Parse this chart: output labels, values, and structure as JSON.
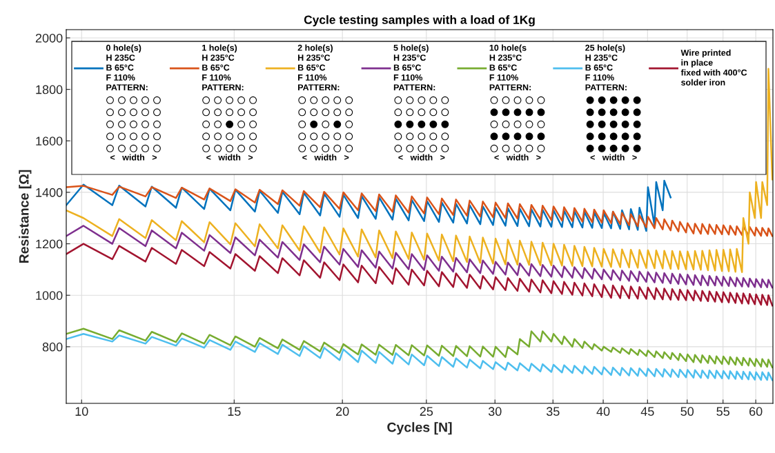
{
  "chart_data": {
    "type": "line",
    "title": "Cycle testing samples with a load of 1Kg",
    "xlabel": "Cycles [N]",
    "ylabel": "Resistance [Ω]",
    "log": "x",
    "xlim": [
      9.6,
      62.8
    ],
    "ylim": [
      580,
      2032
    ],
    "xticks": [
      10,
      15,
      20,
      25,
      30,
      35,
      40,
      45,
      50,
      55,
      60
    ],
    "yticks": [
      800,
      1000,
      1200,
      1400,
      1600,
      1800,
      2000
    ],
    "grid": true,
    "legend": "top",
    "line_style": "solid",
    "marker": "none",
    "annotations": [
      "<   width   >"
    ],
    "x": [
      9.6,
      10.05,
      10.85,
      11.05,
      11.85,
      12.05,
      12.85,
      13.05,
      13.85,
      14.05,
      14.85,
      15.05,
      15.85,
      16.05,
      16.85,
      17.05,
      17.85,
      18.05,
      18.85,
      19.05,
      19.85,
      20.05,
      20.85,
      21.05,
      21.85,
      22.05,
      22.85,
      23.05,
      23.85,
      24.05,
      24.85,
      25.05,
      25.85,
      26.05,
      26.85,
      27.05,
      27.85,
      28.05,
      28.85,
      29.05,
      29.85,
      30.05,
      30.85,
      31.05,
      31.85,
      32.05,
      32.85,
      33.05,
      33.85,
      34.05,
      34.85,
      35.05,
      35.85,
      36.05,
      36.85,
      37.05,
      37.85,
      38.05,
      38.85,
      39.05,
      39.85,
      40.05,
      40.85,
      41.05,
      41.85,
      42.05,
      42.85,
      43.05,
      43.85,
      44.05,
      44.85,
      45.05,
      45.85,
      46.05,
      46.85,
      47.05,
      47.85,
      48.05,
      48.85,
      49.05,
      49.85,
      50.05,
      50.85,
      51.05,
      51.85,
      52.05,
      52.85,
      53.05,
      53.85,
      54.05,
      54.85,
      55.05,
      55.85,
      56.05,
      56.85,
      57.05,
      57.85,
      58.05,
      58.85,
      59.05,
      59.85,
      60.05,
      60.85,
      61.05,
      61.85,
      62.05,
      62.7
    ],
    "series": [
      {
        "name": "0 hole(s)\nH 235C\nB 65°C\nF 110%\nPATTERN:",
        "color": "#0072bd",
        "values": [
          1350,
          1430,
          1350,
          1426,
          1345,
          1422,
          1340,
          1418,
          1335,
          1414,
          1330,
          1410,
          1325,
          1406,
          1320,
          1402,
          1315,
          1398,
          1310,
          1394,
          1305,
          1390,
          1300,
          1385,
          1297,
          1380,
          1294,
          1375,
          1291,
          1370,
          1288,
          1365,
          1285,
          1360,
          1282,
          1355,
          1279,
          1350,
          1276,
          1345,
          1273,
          1340,
          1270,
          1338,
          1269,
          1336,
          1268,
          1334,
          1267,
          1332,
          1266,
          1330,
          1265,
          1328,
          1264,
          1326,
          1263,
          1324,
          1262,
          1322,
          1261,
          1320,
          1260,
          1325,
          1258,
          1330,
          1256,
          1335,
          1254,
          1340,
          1250,
          1420,
          1270,
          1440,
          1330,
          1445,
          1380,
          null,
          null,
          null,
          null,
          null,
          null,
          null,
          null,
          null,
          null,
          null,
          null,
          null,
          null,
          null,
          null,
          null,
          null,
          null,
          null,
          null,
          null,
          null,
          null,
          null,
          null,
          null,
          null,
          null,
          null
        ]
      },
      {
        "name": "1 hole(s)\nH 235°C\nB 65°C\nF 110%\nPATTERN:",
        "color": "#d95319",
        "values": [
          1420,
          1425,
          1390,
          1422,
          1384,
          1420,
          1378,
          1418,
          1372,
          1415,
          1366,
          1412,
          1360,
          1410,
          1354,
          1408,
          1348,
          1405,
          1342,
          1402,
          1336,
          1400,
          1330,
          1396,
          1327,
          1392,
          1324,
          1388,
          1321,
          1384,
          1318,
          1380,
          1315,
          1376,
          1312,
          1372,
          1309,
          1368,
          1306,
          1364,
          1303,
          1360,
          1300,
          1357,
          1298,
          1354,
          1296,
          1351,
          1294,
          1348,
          1292,
          1345,
          1290,
          1342,
          1288,
          1339,
          1286,
          1336,
          1284,
          1333,
          1282,
          1330,
          1280,
          1325,
          1276,
          1320,
          1272,
          1315,
          1268,
          1310,
          1264,
          1305,
          1260,
          1300,
          1256,
          1295,
          1252,
          1290,
          1248,
          1285,
          1244,
          1280,
          1240,
          1278,
          1239,
          1277,
          1238,
          1275,
          1238,
          1273,
          1237,
          1272,
          1236,
          1270,
          1235,
          1268,
          1234,
          1267,
          1233,
          1265,
          1232,
          1263,
          1231,
          1262,
          1231,
          1260,
          1230
        ]
      },
      {
        "name": "2 hole(s)\nH 235°C\nB 65°C\nF 110%\nPATTERN:",
        "color": "#edb120",
        "values": [
          1330,
          1300,
          1230,
          1296,
          1222,
          1292,
          1214,
          1288,
          1206,
          1284,
          1198,
          1280,
          1190,
          1276,
          1182,
          1272,
          1174,
          1268,
          1166,
          1264,
          1158,
          1260,
          1150,
          1256,
          1147,
          1252,
          1144,
          1248,
          1141,
          1244,
          1138,
          1240,
          1135,
          1236,
          1132,
          1232,
          1129,
          1228,
          1126,
          1224,
          1123,
          1220,
          1120,
          1216,
          1119,
          1212,
          1118,
          1208,
          1117,
          1204,
          1116,
          1200,
          1115,
          1196,
          1114,
          1192,
          1113,
          1188,
          1112,
          1184,
          1111,
          1180,
          1110,
          1179,
          1109,
          1178,
          1108,
          1177,
          1107,
          1176,
          1106,
          1175,
          1105,
          1174,
          1104,
          1173,
          1103,
          1172,
          1102,
          1171,
          1101,
          1170,
          1100,
          1172,
          1099,
          1173,
          1097,
          1175,
          1096,
          1176,
          1094,
          1177,
          1093,
          1178,
          1091,
          1180,
          1090,
          1300,
          1200,
          1400,
          1300,
          1440,
          1300,
          1440,
          1350,
          1880,
          1450
        ]
      },
      {
        "name": "5 hole(s)\nH 235°C\nB 65°C\nF 110%\nPATTERN:",
        "color": "#7e2f8e",
        "values": [
          1230,
          1270,
          1200,
          1261,
          1191,
          1252,
          1182,
          1243,
          1173,
          1234,
          1164,
          1225,
          1155,
          1216,
          1146,
          1207,
          1137,
          1198,
          1128,
          1189,
          1119,
          1180,
          1110,
          1175,
          1107,
          1170,
          1104,
          1165,
          1101,
          1160,
          1098,
          1155,
          1095,
          1150,
          1092,
          1145,
          1089,
          1140,
          1086,
          1135,
          1083,
          1130,
          1080,
          1127,
          1078,
          1124,
          1076,
          1121,
          1074,
          1118,
          1072,
          1115,
          1070,
          1112,
          1068,
          1109,
          1066,
          1106,
          1064,
          1103,
          1062,
          1100,
          1060,
          1098,
          1058,
          1096,
          1056,
          1094,
          1054,
          1092,
          1052,
          1090,
          1050,
          1088,
          1048,
          1086,
          1046,
          1084,
          1044,
          1082,
          1042,
          1080,
          1040,
          1078,
          1039,
          1077,
          1038,
          1075,
          1038,
          1073,
          1037,
          1072,
          1036,
          1070,
          1035,
          1068,
          1034,
          1067,
          1033,
          1065,
          1032,
          1063,
          1031,
          1062,
          1031,
          1060,
          1030
        ]
      },
      {
        "name": "10 hole(s\nH 235°C\nB 65°C\nF 110%\nPATTERN:",
        "color": "#77ac30",
        "values": [
          850,
          870,
          830,
          864,
          824,
          858,
          818,
          852,
          812,
          846,
          806,
          840,
          800,
          834,
          794,
          828,
          788,
          822,
          782,
          816,
          776,
          810,
          770,
          809,
          769,
          808,
          768,
          807,
          767,
          806,
          766,
          805,
          765,
          804,
          764,
          803,
          763,
          802,
          762,
          801,
          761,
          800,
          760,
          800,
          770,
          830,
          800,
          860,
          820,
          860,
          820,
          850,
          810,
          840,
          800,
          830,
          795,
          820,
          790,
          810,
          785,
          800,
          780,
          797,
          776,
          794,
          772,
          791,
          768,
          788,
          764,
          785,
          760,
          782,
          756,
          779,
          752,
          776,
          748,
          773,
          744,
          770,
          740,
          768,
          738,
          767,
          737,
          765,
          735,
          763,
          733,
          762,
          732,
          760,
          730,
          758,
          728,
          757,
          727,
          755,
          725,
          753,
          723,
          752,
          722,
          750,
          720
        ]
      },
      {
        "name": "25 hole(s)\nH 235°C\nB 65°C\nF 110%\nPATTERN:",
        "color": "#4dbeee",
        "values": [
          830,
          850,
          820,
          844,
          812,
          838,
          804,
          832,
          796,
          826,
          788,
          820,
          780,
          814,
          772,
          808,
          764,
          802,
          756,
          796,
          748,
          790,
          740,
          785,
          737,
          780,
          734,
          775,
          731,
          770,
          728,
          765,
          725,
          760,
          722,
          755,
          719,
          750,
          716,
          745,
          713,
          740,
          710,
          738,
          708,
          736,
          706,
          734,
          704,
          732,
          702,
          730,
          700,
          728,
          698,
          726,
          696,
          724,
          694,
          722,
          692,
          720,
          690,
          719,
          689,
          718,
          688,
          717,
          687,
          716,
          686,
          715,
          685,
          714,
          684,
          713,
          683,
          712,
          682,
          711,
          681,
          710,
          680,
          709,
          679,
          708,
          678,
          708,
          678,
          707,
          677,
          706,
          676,
          705,
          675,
          704,
          674,
          703,
          673,
          702,
          672,
          701,
          671,
          701,
          671,
          700,
          670
        ]
      },
      {
        "name": "Wire printed\nin place\nfixed with 400°C\nsolder iron",
        "color": "#a2142f",
        "values": [
          1160,
          1200,
          1140,
          1192,
          1131,
          1184,
          1122,
          1176,
          1113,
          1168,
          1104,
          1160,
          1095,
          1152,
          1086,
          1144,
          1077,
          1136,
          1068,
          1128,
          1059,
          1120,
          1050,
          1115,
          1047,
          1110,
          1044,
          1105,
          1041,
          1100,
          1038,
          1095,
          1035,
          1090,
          1032,
          1085,
          1029,
          1080,
          1026,
          1075,
          1023,
          1070,
          1020,
          1067,
          1017,
          1064,
          1014,
          1061,
          1011,
          1058,
          1008,
          1055,
          1005,
          1052,
          1002,
          1049,
          999,
          1046,
          996,
          1043,
          993,
          1040,
          990,
          1038,
          989,
          1036,
          988,
          1034,
          987,
          1032,
          986,
          1030,
          985,
          1028,
          984,
          1026,
          983,
          1024,
          982,
          1022,
          981,
          1020,
          980,
          1018,
          978,
          1017,
          977,
          1015,
          975,
          1013,
          973,
          1012,
          972,
          1010,
          970,
          1008,
          968,
          1007,
          967,
          1005,
          965,
          1003,
          963,
          1002,
          962,
          1000,
          960
        ]
      }
    ]
  }
}
